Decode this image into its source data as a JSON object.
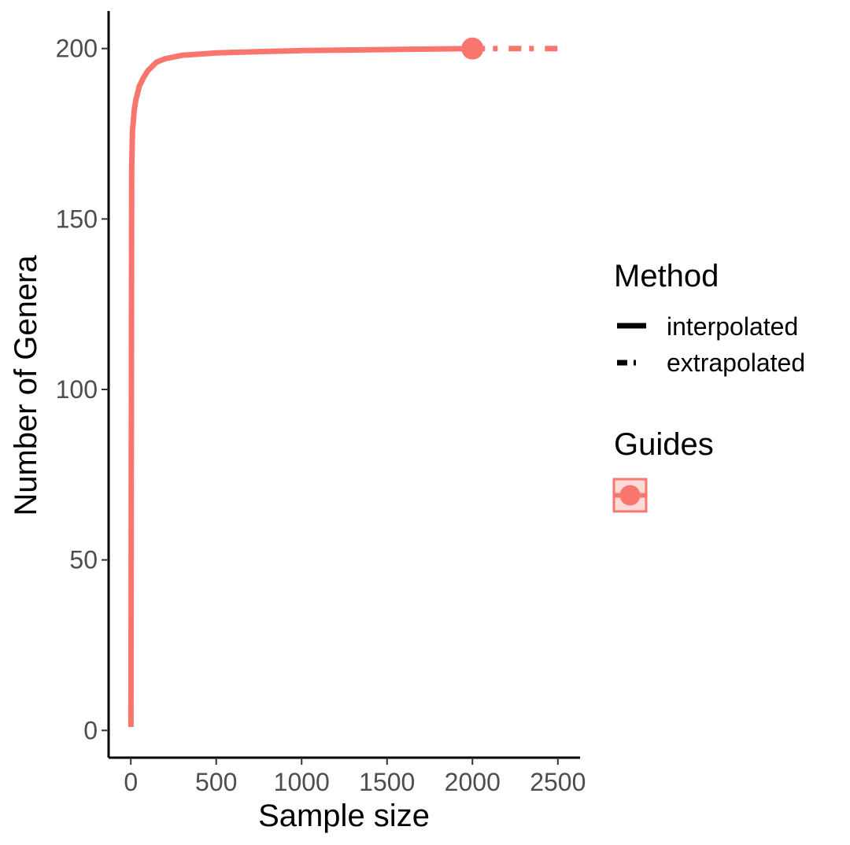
{
  "chart_data": {
    "type": "line",
    "title": "",
    "xlabel": "Sample size",
    "ylabel": "Number of Genera",
    "xlim": [
      -130,
      2630
    ],
    "ylim": [
      -8,
      211
    ],
    "x_ticks": [
      0,
      500,
      1000,
      1500,
      2000,
      2500
    ],
    "y_ticks": [
      0,
      50,
      100,
      150,
      200
    ],
    "grid": false,
    "series": [
      {
        "name": "Guides",
        "color": "#F8766D",
        "interpolated": {
          "x": [
            1,
            5,
            10,
            20,
            30,
            50,
            75,
            100,
            150,
            200,
            300,
            500,
            750,
            1000,
            1500,
            2000
          ],
          "y": [
            1,
            165,
            176,
            182,
            185,
            189,
            191.5,
            193.5,
            196,
            197,
            198,
            198.7,
            199.1,
            199.4,
            199.7,
            200
          ]
        },
        "observed": {
          "x": 2000,
          "y": 200
        },
        "extrapolated": {
          "x": [
            2000,
            2250,
            2500
          ],
          "y": [
            200,
            200,
            200
          ]
        }
      }
    ],
    "legend": {
      "placement": "right",
      "method_title": "Method",
      "method_items": [
        "interpolated",
        "extrapolated"
      ],
      "guides_title": "Guides"
    }
  }
}
